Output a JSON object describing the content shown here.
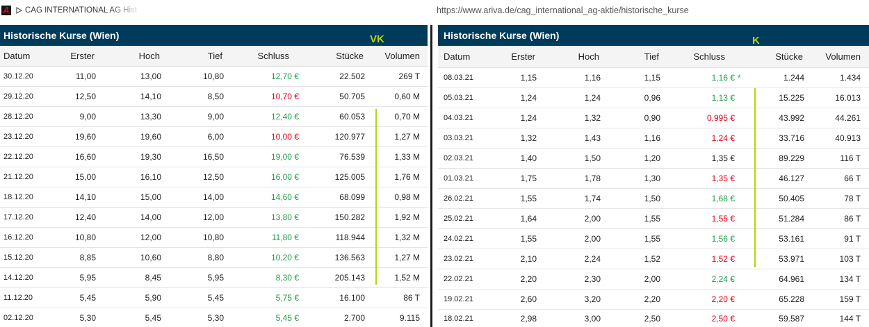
{
  "browser": {
    "tab": {
      "title": "CAG INTERNATIONAL AG Hist",
      "icon": "ariva-logo-icon",
      "logo_letter": "A",
      "indicator_icon": "play-outline-icon"
    },
    "address_bar": {
      "url": "https://www.ariva.de/cag_international_ag-aktie/historische_kurse"
    }
  },
  "colors": {
    "header_bg": "#003b5c",
    "up": "#1f9e49",
    "down": "#e3001b",
    "flat": "#222222",
    "annotation": "#b7d40c",
    "divider": "#1c1c1c"
  },
  "panels": [
    {
      "title": "Historische Kurse (Wien)",
      "annotation": "VK",
      "columns": [
        "Datum",
        "Erster",
        "Hoch",
        "Tief",
        "Schluss",
        "Stücke",
        "Volumen"
      ],
      "rows": [
        {
          "datum": "30.12.20",
          "erster": "11,00",
          "hoch": "13,00",
          "tief": "10,80",
          "schluss": "12,70 €",
          "trend": "up",
          "stuecke": "22.502",
          "volumen": "269 T"
        },
        {
          "datum": "29.12.20",
          "erster": "12,50",
          "hoch": "14,10",
          "tief": "8,50",
          "schluss": "10,70 €",
          "trend": "down",
          "stuecke": "50.705",
          "volumen": "0,60 M"
        },
        {
          "datum": "28.12.20",
          "erster": "9,00",
          "hoch": "13,30",
          "tief": "9,00",
          "schluss": "12,40 €",
          "trend": "up",
          "stuecke": "60.053",
          "volumen": "0,70 M"
        },
        {
          "datum": "23.12.20",
          "erster": "19,60",
          "hoch": "19,60",
          "tief": "6,00",
          "schluss": "10,00 €",
          "trend": "down",
          "stuecke": "120.977",
          "volumen": "1,27 M"
        },
        {
          "datum": "22.12.20",
          "erster": "16,60",
          "hoch": "19,30",
          "tief": "16,50",
          "schluss": "19,00 €",
          "trend": "up",
          "stuecke": "76.539",
          "volumen": "1,33 M"
        },
        {
          "datum": "21.12.20",
          "erster": "15,00",
          "hoch": "16,10",
          "tief": "12,50",
          "schluss": "16,00 €",
          "trend": "up",
          "stuecke": "125.005",
          "volumen": "1,76 M"
        },
        {
          "datum": "18.12.20",
          "erster": "14,10",
          "hoch": "15,00",
          "tief": "14,00",
          "schluss": "14,60 €",
          "trend": "up",
          "stuecke": "68.099",
          "volumen": "0,98 M"
        },
        {
          "datum": "17.12.20",
          "erster": "12,40",
          "hoch": "14,00",
          "tief": "12,00",
          "schluss": "13,80 €",
          "trend": "up",
          "stuecke": "150.282",
          "volumen": "1,92 M"
        },
        {
          "datum": "16.12.20",
          "erster": "10,80",
          "hoch": "12,00",
          "tief": "10,80",
          "schluss": "11,80 €",
          "trend": "up",
          "stuecke": "118.944",
          "volumen": "1,32 M"
        },
        {
          "datum": "15.12.20",
          "erster": "8,85",
          "hoch": "10,60",
          "tief": "8,80",
          "schluss": "10,20 €",
          "trend": "up",
          "stuecke": "136.563",
          "volumen": "1,27 M"
        },
        {
          "datum": "14.12.20",
          "erster": "5,95",
          "hoch": "8,45",
          "tief": "5,95",
          "schluss": "8,30 €",
          "trend": "up",
          "stuecke": "205.143",
          "volumen": "1,52 M"
        },
        {
          "datum": "11.12.20",
          "erster": "5,45",
          "hoch": "5,90",
          "tief": "5,45",
          "schluss": "5,75 €",
          "trend": "up",
          "stuecke": "16.100",
          "volumen": "86 T"
        },
        {
          "datum": "02.12.20",
          "erster": "5,30",
          "hoch": "5,45",
          "tief": "5,30",
          "schluss": "5,45 €",
          "trend": "up",
          "stuecke": "2.700",
          "volumen": "9.115"
        }
      ]
    },
    {
      "title": "Historische Kurse (Wien)",
      "annotation": "K",
      "columns": [
        "Datum",
        "Erster",
        "Hoch",
        "Tief",
        "Schluss",
        "Stücke",
        "Volumen"
      ],
      "rows": [
        {
          "datum": "08.03.21",
          "erster": "1,15",
          "hoch": "1,16",
          "tief": "1,15",
          "schluss": "1,16 €",
          "note": "*",
          "trend": "up",
          "stuecke": "1.244",
          "volumen": "1.434"
        },
        {
          "datum": "05.03.21",
          "erster": "1,24",
          "hoch": "1,24",
          "tief": "0,96",
          "schluss": "1,13 €",
          "trend": "up",
          "stuecke": "15.225",
          "volumen": "16.013"
        },
        {
          "datum": "04.03.21",
          "erster": "1,24",
          "hoch": "1,32",
          "tief": "0,90",
          "schluss": "0,995 €",
          "trend": "down",
          "stuecke": "43.992",
          "volumen": "44.261"
        },
        {
          "datum": "03.03.21",
          "erster": "1,32",
          "hoch": "1,43",
          "tief": "1,16",
          "schluss": "1,24 €",
          "trend": "down",
          "stuecke": "33.716",
          "volumen": "40.913"
        },
        {
          "datum": "02.03.21",
          "erster": "1,40",
          "hoch": "1,50",
          "tief": "1,20",
          "schluss": "1,35 €",
          "trend": "flat",
          "stuecke": "89.229",
          "volumen": "116 T"
        },
        {
          "datum": "01.03.21",
          "erster": "1,75",
          "hoch": "1,78",
          "tief": "1,30",
          "schluss": "1,35 €",
          "trend": "down",
          "stuecke": "46.127",
          "volumen": "66 T"
        },
        {
          "datum": "26.02.21",
          "erster": "1,55",
          "hoch": "1,74",
          "tief": "1,50",
          "schluss": "1,68 €",
          "trend": "up",
          "stuecke": "50.405",
          "volumen": "78 T"
        },
        {
          "datum": "25.02.21",
          "erster": "1,64",
          "hoch": "2,00",
          "tief": "1,55",
          "schluss": "1,55 €",
          "trend": "down",
          "stuecke": "51.284",
          "volumen": "86 T"
        },
        {
          "datum": "24.02.21",
          "erster": "1,55",
          "hoch": "2,00",
          "tief": "1,55",
          "schluss": "1,56 €",
          "trend": "up",
          "stuecke": "53.161",
          "volumen": "91 T"
        },
        {
          "datum": "23.02.21",
          "erster": "2,10",
          "hoch": "2,24",
          "tief": "1,52",
          "schluss": "1,52 €",
          "trend": "down",
          "stuecke": "53.971",
          "volumen": "103 T"
        },
        {
          "datum": "22.02.21",
          "erster": "2,20",
          "hoch": "2,30",
          "tief": "2,00",
          "schluss": "2,24 €",
          "trend": "up",
          "stuecke": "64.961",
          "volumen": "134 T"
        },
        {
          "datum": "19.02.21",
          "erster": "2,60",
          "hoch": "3,20",
          "tief": "2,20",
          "schluss": "2,20 €",
          "trend": "down",
          "stuecke": "65.228",
          "volumen": "159 T"
        },
        {
          "datum": "18.02.21",
          "erster": "2,98",
          "hoch": "3,00",
          "tief": "2,50",
          "schluss": "2,50 €",
          "trend": "down",
          "stuecke": "59.587",
          "volumen": "144 T"
        }
      ]
    }
  ]
}
